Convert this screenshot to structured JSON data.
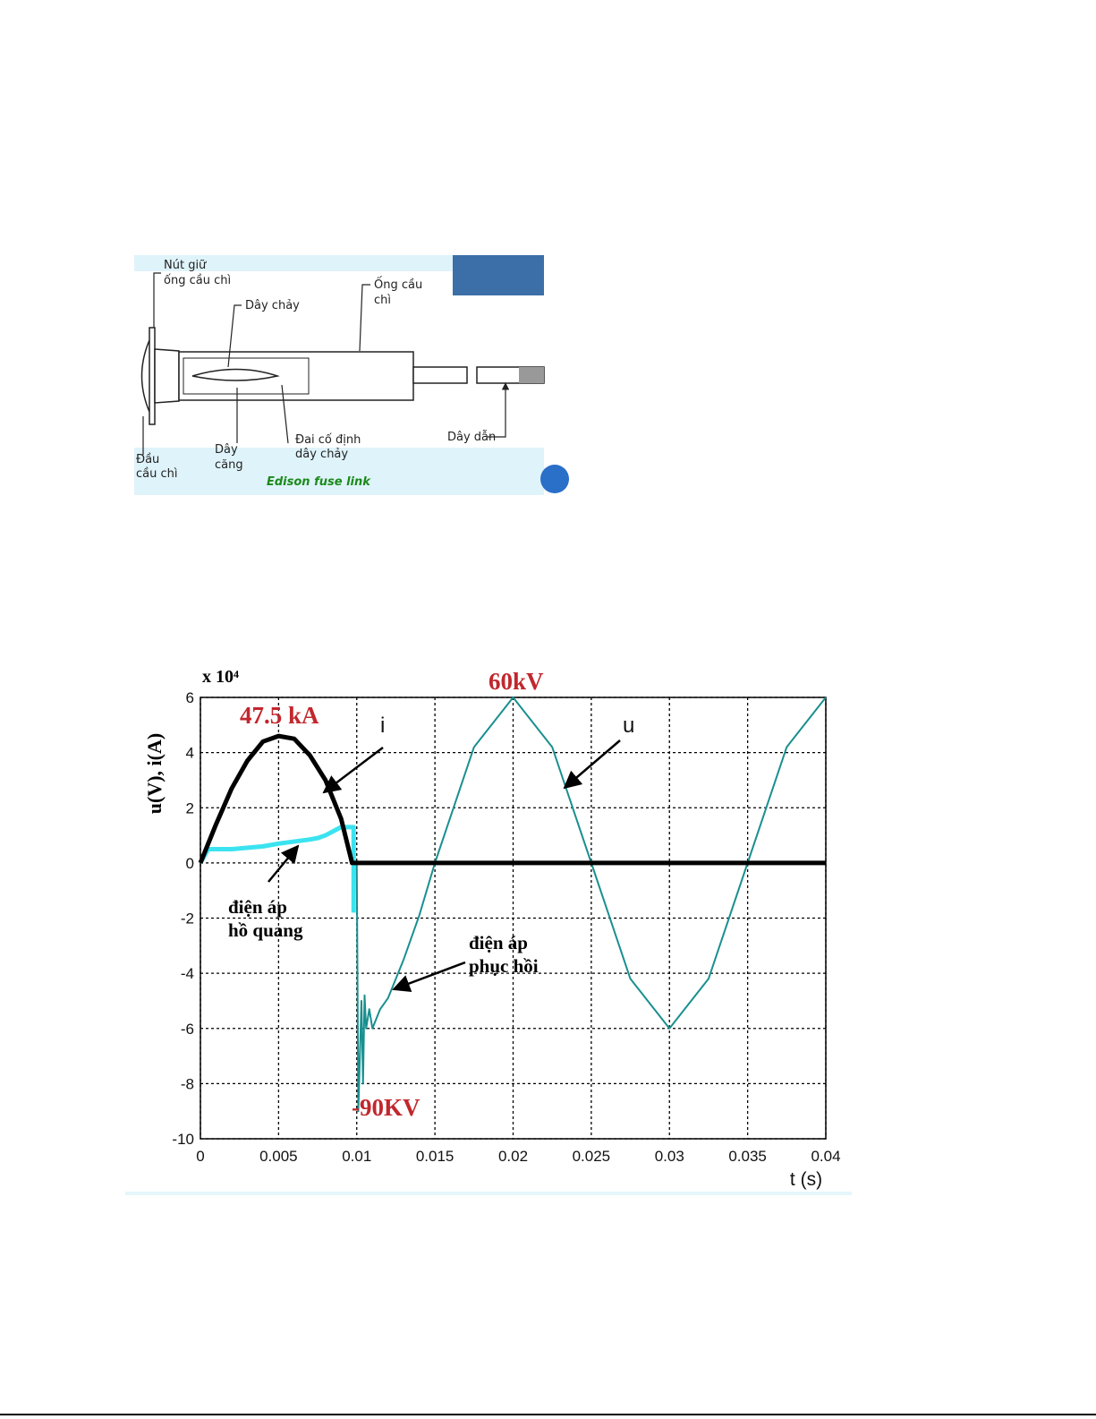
{
  "diagram": {
    "caption": "Edison fuse link",
    "labels": [
      {
        "lines": [
          "Nút giữ",
          "ống cầu chì"
        ]
      },
      {
        "lines": [
          "Dây chảy"
        ]
      },
      {
        "lines": [
          "Ống cầu",
          "chì"
        ]
      },
      {
        "lines": [
          "Đầu",
          "cầu chì"
        ]
      },
      {
        "lines": [
          "Dây",
          "căng"
        ]
      },
      {
        "lines": [
          "Đai cố định",
          "dây chảy"
        ]
      },
      {
        "lines": [
          "Dây dẫn"
        ]
      }
    ]
  },
  "chart_data": {
    "type": "line",
    "ylabel": "u(V), i(A)",
    "xlabel": "t (s)",
    "multiplier": "x 10⁴",
    "xlim": [
      0,
      0.04
    ],
    "xticks": [
      0,
      0.005,
      0.01,
      0.015,
      0.02,
      0.025,
      0.03,
      0.035,
      0.04
    ],
    "ylim": [
      -10,
      6
    ],
    "yticks": [
      -10,
      -8,
      -6,
      -4,
      -2,
      0,
      2,
      4,
      6
    ],
    "grid": true,
    "series": [
      {
        "name": "i",
        "color": "#000000",
        "x": [
          0,
          0.001,
          0.002,
          0.003,
          0.004,
          0.005,
          0.006,
          0.007,
          0.008,
          0.009,
          0.0097,
          0.04
        ],
        "values": [
          0,
          1.4,
          2.7,
          3.7,
          4.4,
          4.6,
          4.5,
          3.9,
          3.0,
          1.6,
          0,
          0
        ]
      },
      {
        "color": "#3be3f0",
        "x": [
          0,
          0.0005,
          0.002,
          0.004,
          0.005,
          0.007,
          0.0075,
          0.008,
          0.009,
          0.0098,
          0.0098
        ],
        "values": [
          0,
          0.5,
          0.5,
          0.6,
          0.7,
          0.85,
          0.9,
          1.0,
          1.3,
          1.3,
          -1.8
        ]
      },
      {
        "name": "u",
        "color": "#1a8f8f",
        "x": [
          0.01,
          0.0101,
          0.0103,
          0.0104,
          0.0105,
          0.0106,
          0.0108,
          0.011,
          0.0115,
          0.012,
          0.013,
          0.014,
          0.015,
          0.0175,
          0.02,
          0.0225,
          0.025,
          0.0275,
          0.03,
          0.0325,
          0.035,
          0.0375,
          0.04
        ],
        "values": [
          0,
          -9,
          -5,
          -8,
          -4.8,
          -6,
          -5.3,
          -6,
          -5.3,
          -4.9,
          -3.5,
          -1.9,
          0,
          4.2,
          6,
          4.2,
          0,
          -4.2,
          -6,
          -4.2,
          0,
          4.2,
          6
        ]
      }
    ],
    "annotations": [
      {
        "lines": [
          "47.5 kA"
        ]
      },
      {
        "lines": [
          "60kV"
        ]
      },
      {
        "lines": [
          "-90KV"
        ]
      },
      {
        "lines": [
          "điện áp",
          "hồ quang"
        ]
      },
      {
        "lines": [
          "điện áp",
          "phục hồi"
        ]
      }
    ]
  }
}
